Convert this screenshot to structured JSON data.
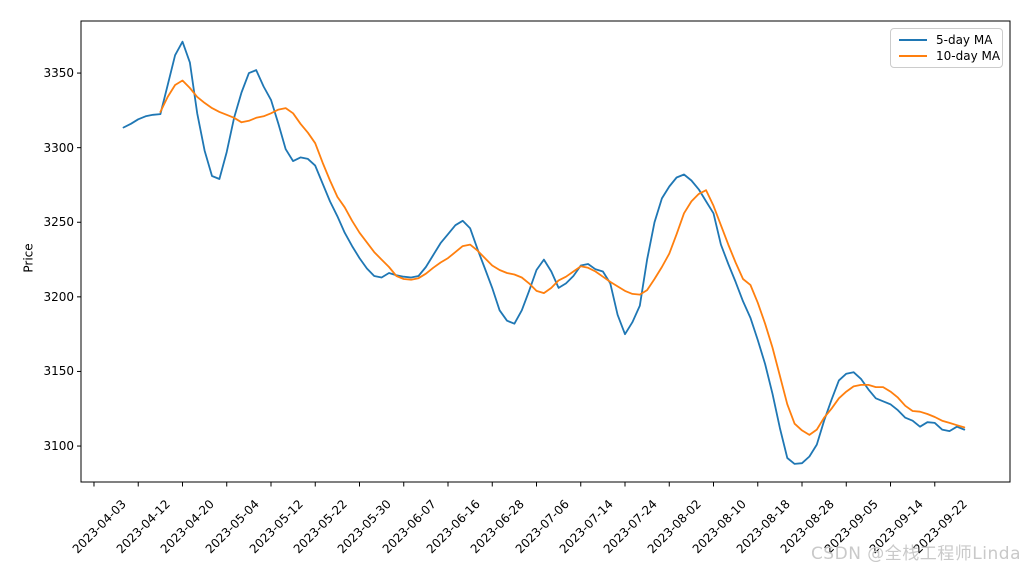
{
  "figure": {
    "background": "#ffffff",
    "axis_color": "#000000"
  },
  "watermark": {
    "text": "CSDN @全栈工程师Linda",
    "color": "#c9c9c9"
  },
  "chart_data": {
    "type": "line",
    "title": "",
    "xlabel": "",
    "ylabel": "Price",
    "grid": false,
    "legend_position": "upper right",
    "x_unit": "trading-day index (0 = 2023-04-03, one point per trading day)",
    "xlim_index": [
      -1.76,
      124.2
    ],
    "ylim": [
      3075.9,
      3384.9
    ],
    "y_ticks": [
      3100,
      3150,
      3200,
      3250,
      3300,
      3350
    ],
    "x_tick_positions": [
      0,
      6,
      12,
      18,
      24,
      30,
      36,
      42,
      48,
      54,
      60,
      66,
      72,
      78,
      84,
      90,
      96,
      102,
      108,
      114
    ],
    "x_tick_labels": [
      "2023-04-03",
      "2023-04-12",
      "2023-04-20",
      "2023-05-04",
      "2023-05-12",
      "2023-05-22",
      "2023-05-30",
      "2023-06-07",
      "2023-06-16",
      "2023-06-28",
      "2023-07-06",
      "2023-07-14",
      "2023-07-24",
      "2023-08-02",
      "2023-08-10",
      "2023-08-18",
      "2023-08-28",
      "2023-09-05",
      "2023-09-14",
      "2023-09-22"
    ],
    "series": [
      {
        "name": "5-day MA",
        "color": "#1f77b4",
        "values": [
          null,
          null,
          null,
          null,
          3313.5,
          3316,
          3319,
          3321,
          3322,
          3322.5,
          3342,
          3362,
          3371,
          3357,
          3323,
          3298,
          3281,
          3279,
          3297,
          3320,
          3337,
          3350,
          3352,
          3341,
          3332,
          3316,
          3299,
          3291,
          3293.5,
          3292.5,
          3288,
          3276,
          3264,
          3254,
          3243,
          3234,
          3226,
          3219,
          3214,
          3213,
          3216,
          3214.5,
          3213.5,
          3213,
          3214,
          3220,
          3228,
          3236,
          3242,
          3248,
          3251,
          3246,
          3232,
          3219,
          3206,
          3191,
          3184,
          3182,
          3191,
          3204,
          3218,
          3225,
          3217,
          3206,
          3209,
          3214,
          3221,
          3222,
          3218.5,
          3217,
          3209,
          3188,
          3175,
          3183,
          3194,
          3225,
          3250,
          3266,
          3274,
          3280,
          3282,
          3278,
          3272,
          3264,
          3256,
          3235,
          3222,
          3210,
          3197,
          3186,
          3171,
          3155,
          3135,
          3112,
          3092,
          3088,
          3088.5,
          3093,
          3101,
          3117,
          3131,
          3144,
          3148.5,
          3149.5,
          3145,
          3138,
          3132,
          3130,
          3128,
          3124,
          3119,
          3117,
          3113,
          3116,
          3115.5,
          3111,
          3110,
          3113,
          3111
        ]
      },
      {
        "name": "10-day MA",
        "color": "#ff7f0e",
        "values": [
          null,
          null,
          null,
          null,
          null,
          null,
          null,
          null,
          null,
          3324,
          3334,
          3342,
          3345,
          3340,
          3334,
          3330,
          3326.5,
          3324,
          3322,
          3320,
          3317,
          3318,
          3320,
          3321,
          3323,
          3325.5,
          3326.5,
          3323,
          3316,
          3310,
          3303,
          3290,
          3278,
          3267,
          3260,
          3251,
          3243,
          3236.5,
          3230,
          3225,
          3220,
          3214,
          3212,
          3211.5,
          3212.5,
          3215.5,
          3219.5,
          3223,
          3226,
          3230,
          3234,
          3235,
          3231,
          3226,
          3221,
          3218,
          3216,
          3215,
          3213,
          3209,
          3204,
          3202.5,
          3206,
          3211,
          3213.5,
          3217,
          3220.5,
          3219.5,
          3217,
          3213.5,
          3210,
          3207,
          3204,
          3202,
          3201.5,
          3204.5,
          3212,
          3220,
          3229,
          3242,
          3256,
          3264,
          3269,
          3271.5,
          3261,
          3248,
          3235,
          3223,
          3212,
          3208,
          3196,
          3182,
          3166,
          3147,
          3128,
          3115,
          3110.5,
          3107.5,
          3111,
          3119,
          3125,
          3132,
          3136.5,
          3140,
          3141,
          3141,
          3139.5,
          3139.5,
          3136.5,
          3132.5,
          3127,
          3123.5,
          3123,
          3121.5,
          3119.5,
          3117,
          3115.5,
          3114,
          3112.5
        ]
      }
    ]
  }
}
